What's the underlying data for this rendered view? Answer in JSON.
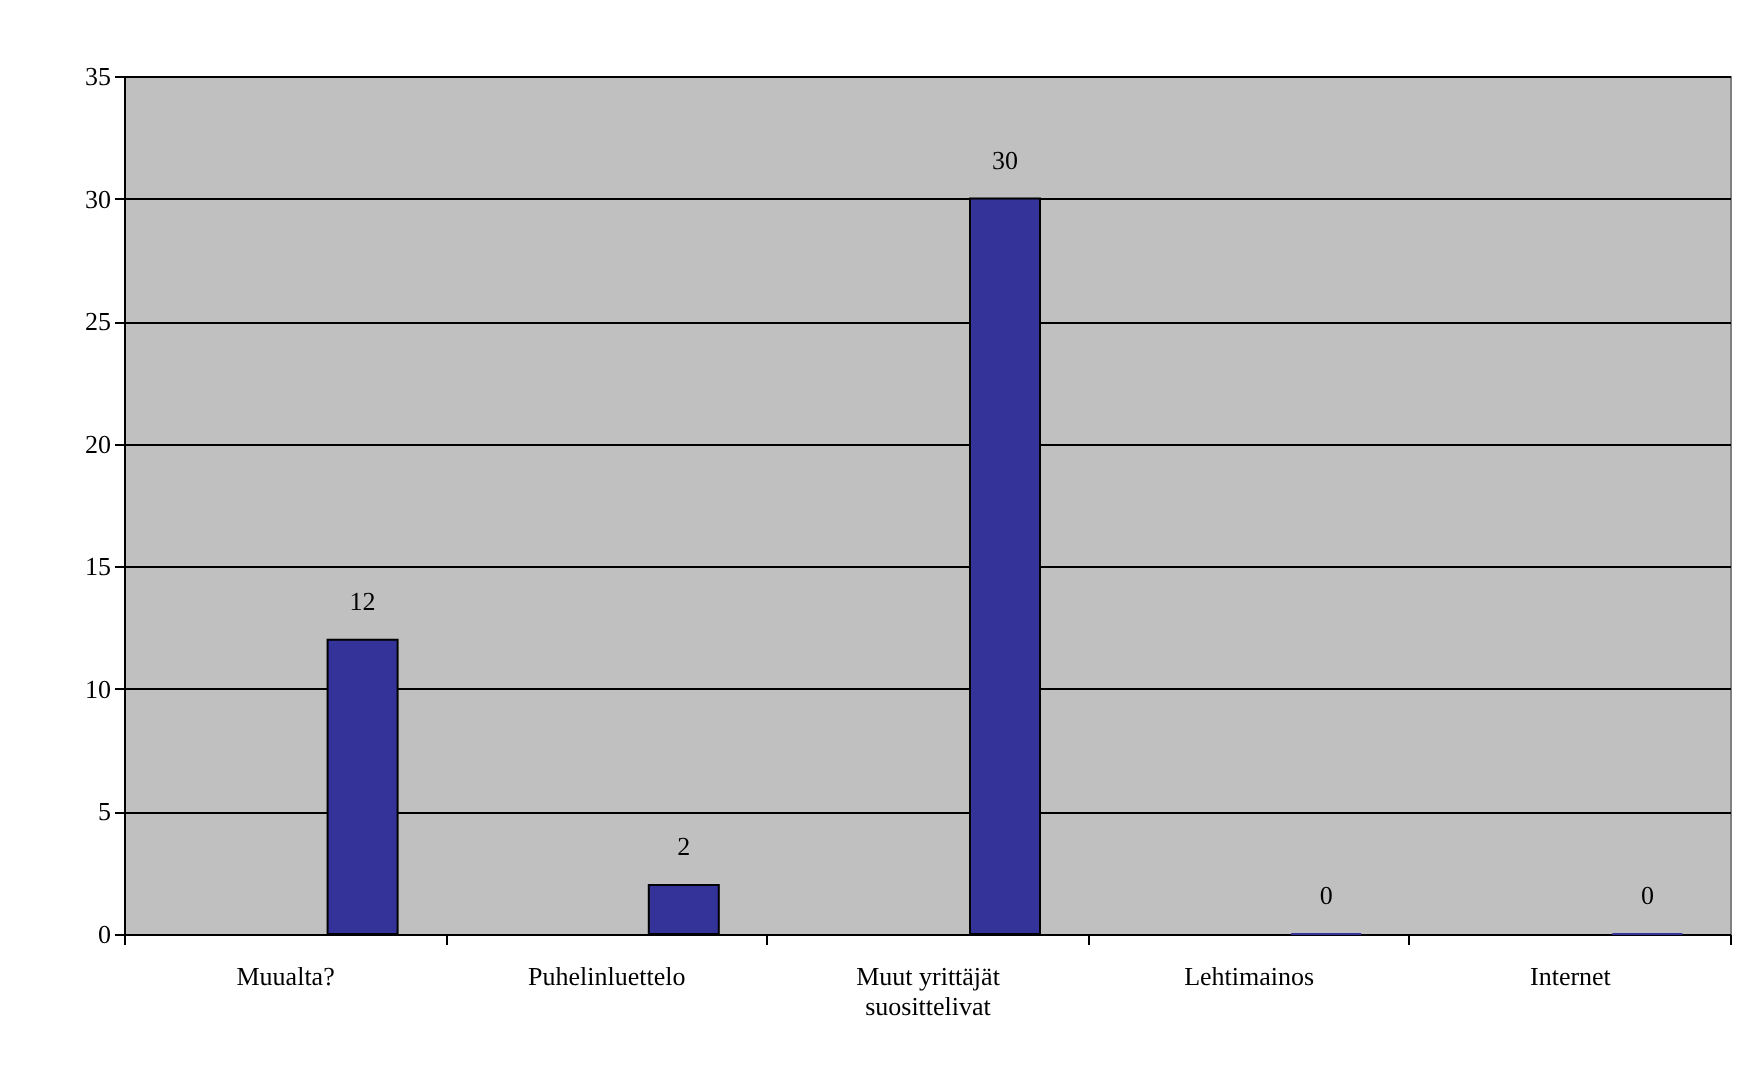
{
  "chart_data": {
    "type": "bar",
    "categories": [
      "Muualta?",
      "Puhelinluettelo",
      "Muut yrittäjät suosittelivat",
      "Lehtimainos",
      "Internet"
    ],
    "values": [
      12,
      2,
      30,
      0,
      0
    ],
    "color": "#333399",
    "ylim": [
      0,
      35
    ],
    "yticks": [
      0,
      5,
      10,
      15,
      20,
      25,
      30,
      35
    ],
    "grid": "y",
    "data_labels": true
  }
}
